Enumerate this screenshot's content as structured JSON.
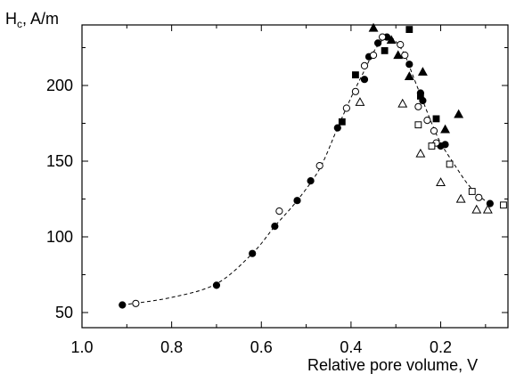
{
  "chart_data": {
    "type": "scatter",
    "title": "",
    "ylabel_main": "H",
    "ylabel_sub": "c",
    "ylabel_rest": ", A/m",
    "xlabel": "Relative pore volume, V",
    "xlim": [
      1.0,
      0.05
    ],
    "ylim": [
      40,
      240
    ],
    "x_reversed": true,
    "x_ticks": [
      1.0,
      0.8,
      0.6,
      0.4,
      0.2
    ],
    "x_tick_labels": [
      "1.0",
      "0.8",
      "0.6",
      "0.4",
      "0.2"
    ],
    "y_ticks": [
      50,
      100,
      150,
      200
    ],
    "y_tick_labels": [
      "50",
      "100",
      "150",
      "200"
    ],
    "grid": false,
    "series": [
      {
        "marker": "filled-circle",
        "points": [
          [
            0.91,
            55
          ],
          [
            0.7,
            68
          ],
          [
            0.62,
            89
          ],
          [
            0.57,
            107
          ],
          [
            0.52,
            124
          ],
          [
            0.49,
            137
          ],
          [
            0.43,
            172
          ],
          [
            0.37,
            204
          ],
          [
            0.36,
            219
          ],
          [
            0.34,
            228
          ],
          [
            0.32,
            232
          ],
          [
            0.27,
            214
          ],
          [
            0.245,
            195
          ],
          [
            0.24,
            190
          ],
          [
            0.2,
            160
          ],
          [
            0.19,
            161
          ],
          [
            0.09,
            122
          ]
        ]
      },
      {
        "marker": "open-circle",
        "points": [
          [
            0.88,
            56
          ],
          [
            0.56,
            117
          ],
          [
            0.47,
            147
          ],
          [
            0.41,
            185
          ],
          [
            0.39,
            196
          ],
          [
            0.37,
            213
          ],
          [
            0.35,
            220
          ],
          [
            0.33,
            232
          ],
          [
            0.29,
            227
          ],
          [
            0.28,
            220
          ],
          [
            0.25,
            186
          ],
          [
            0.23,
            177
          ],
          [
            0.215,
            170
          ],
          [
            0.21,
            162
          ],
          [
            0.115,
            126
          ]
        ]
      },
      {
        "marker": "filled-square",
        "points": [
          [
            0.42,
            176
          ],
          [
            0.39,
            207
          ],
          [
            0.325,
            223
          ],
          [
            0.27,
            237
          ],
          [
            0.245,
            193
          ],
          [
            0.21,
            178
          ]
        ]
      },
      {
        "marker": "open-square",
        "points": [
          [
            0.25,
            174
          ],
          [
            0.22,
            160
          ],
          [
            0.18,
            148
          ],
          [
            0.13,
            130
          ],
          [
            0.06,
            121
          ]
        ]
      },
      {
        "marker": "filled-triangle",
        "points": [
          [
            0.35,
            238
          ],
          [
            0.31,
            230
          ],
          [
            0.295,
            220
          ],
          [
            0.27,
            206
          ],
          [
            0.24,
            209
          ],
          [
            0.19,
            171
          ],
          [
            0.16,
            181
          ]
        ]
      },
      {
        "marker": "open-triangle",
        "points": [
          [
            0.38,
            189
          ],
          [
            0.285,
            188
          ],
          [
            0.245,
            155
          ],
          [
            0.2,
            136
          ],
          [
            0.155,
            125
          ],
          [
            0.12,
            118
          ],
          [
            0.095,
            118
          ]
        ]
      }
    ],
    "trend_line": {
      "style": "dashed",
      "points": [
        [
          0.91,
          55
        ],
        [
          0.8,
          60
        ],
        [
          0.7,
          69
        ],
        [
          0.62,
          89
        ],
        [
          0.57,
          107
        ],
        [
          0.52,
          124
        ],
        [
          0.47,
          145
        ],
        [
          0.43,
          172
        ],
        [
          0.4,
          192
        ],
        [
          0.37,
          210
        ],
        [
          0.35,
          222
        ],
        [
          0.33,
          230
        ],
        [
          0.315,
          232
        ],
        [
          0.3,
          229
        ],
        [
          0.28,
          220
        ],
        [
          0.26,
          205
        ],
        [
          0.24,
          190
        ],
        [
          0.22,
          175
        ],
        [
          0.2,
          162
        ],
        [
          0.17,
          148
        ],
        [
          0.14,
          135
        ],
        [
          0.11,
          126
        ],
        [
          0.09,
          122
        ]
      ]
    }
  }
}
